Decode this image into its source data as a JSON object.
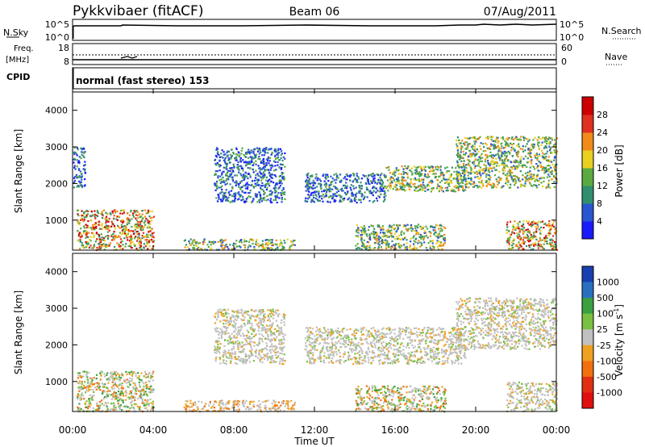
{
  "header": {
    "station": "Pykkvibaer (fitACF)",
    "beam": "Beam 06",
    "date": "07/Aug/2011"
  },
  "top_panels": {
    "nsky_label": "N.Sky",
    "nsky_ticks": [
      "10^5",
      "10^0"
    ],
    "nsearch_label": "N.Search",
    "nsearch_ticks": [
      "10^5",
      "10^0"
    ],
    "freq_label_1": "Freq.",
    "freq_label_2": "[MHz]",
    "freq_ticks": [
      "18",
      "8"
    ],
    "nave_label": "Nave",
    "nave_ticks": [
      "60",
      "0"
    ],
    "cpid_label": "CPID",
    "cpid_text": "normal (fast stereo) 153"
  },
  "axes": {
    "x_ticks": [
      "00:00",
      "04:00",
      "08:00",
      "12:00",
      "16:00",
      "20:00",
      "00:00"
    ],
    "x_label": "Time UT",
    "y_label": "Slant Range [km]",
    "y_ticks": [
      "1000",
      "2000",
      "3000",
      "4000"
    ]
  },
  "power_bar": {
    "label": "Power [dB]",
    "ticks": [
      "4",
      "8",
      "12",
      "16",
      "20",
      "24",
      "28"
    ],
    "colors": [
      "#1a1aff",
      "#2a55d0",
      "#2f8f6f",
      "#5aaa40",
      "#e8d020",
      "#f08a1a",
      "#e03020",
      "#cc0000"
    ]
  },
  "velocity_bar": {
    "label": "Velocity [m s^-1]",
    "ticks": [
      "1000",
      "500",
      "100",
      "25",
      "-25",
      "-100",
      "-500",
      "-1000"
    ],
    "colors": [
      "#1a3fb0",
      "#2a70c0",
      "#3aa040",
      "#7ac040",
      "#c0c0c0",
      "#f0a020",
      "#f07010",
      "#e03010",
      "#e01010"
    ]
  },
  "chart_data": [
    {
      "type": "heatmap",
      "name": "Power",
      "x_range_hours": [
        0,
        24
      ],
      "y_range_km": [
        180,
        4500
      ],
      "blobs": [
        {
          "t": [
            0.2,
            4.0
          ],
          "r": [
            200,
            1300
          ],
          "level": "high"
        },
        {
          "t": [
            0.0,
            0.6
          ],
          "r": [
            1900,
            3000
          ],
          "level": "low"
        },
        {
          "t": [
            5.5,
            11.0
          ],
          "r": [
            200,
            500
          ],
          "level": "mid"
        },
        {
          "t": [
            7.0,
            10.5
          ],
          "r": [
            1500,
            3000
          ],
          "level": "low"
        },
        {
          "t": [
            11.5,
            15.5
          ],
          "r": [
            1500,
            2300
          ],
          "level": "low"
        },
        {
          "t": [
            14.0,
            18.5
          ],
          "r": [
            200,
            900
          ],
          "level": "mid"
        },
        {
          "t": [
            15.5,
            19.5
          ],
          "r": [
            1800,
            2500
          ],
          "level": "mid"
        },
        {
          "t": [
            19.0,
            24.0
          ],
          "r": [
            1900,
            3300
          ],
          "level": "mid"
        },
        {
          "t": [
            21.5,
            24.0
          ],
          "r": [
            200,
            1000
          ],
          "level": "high"
        }
      ]
    },
    {
      "type": "heatmap",
      "name": "Velocity",
      "x_range_hours": [
        0,
        24
      ],
      "y_range_km": [
        180,
        4500
      ],
      "blobs": [
        {
          "t": [
            0.2,
            4.0
          ],
          "r": [
            200,
            1300
          ],
          "v": "mixed-negative"
        },
        {
          "t": [
            5.5,
            11.0
          ],
          "r": [
            200,
            500
          ],
          "v": "negative"
        },
        {
          "t": [
            7.0,
            10.5
          ],
          "r": [
            1500,
            3000
          ],
          "v": "near-zero"
        },
        {
          "t": [
            11.5,
            19.5
          ],
          "r": [
            1500,
            2500
          ],
          "v": "near-zero"
        },
        {
          "t": [
            14.0,
            18.5
          ],
          "r": [
            200,
            900
          ],
          "v": "mixed"
        },
        {
          "t": [
            19.0,
            24.0
          ],
          "r": [
            1900,
            3300
          ],
          "v": "near-zero"
        },
        {
          "t": [
            21.5,
            24.0
          ],
          "r": [
            200,
            1000
          ],
          "v": "near-zero"
        }
      ]
    }
  ]
}
